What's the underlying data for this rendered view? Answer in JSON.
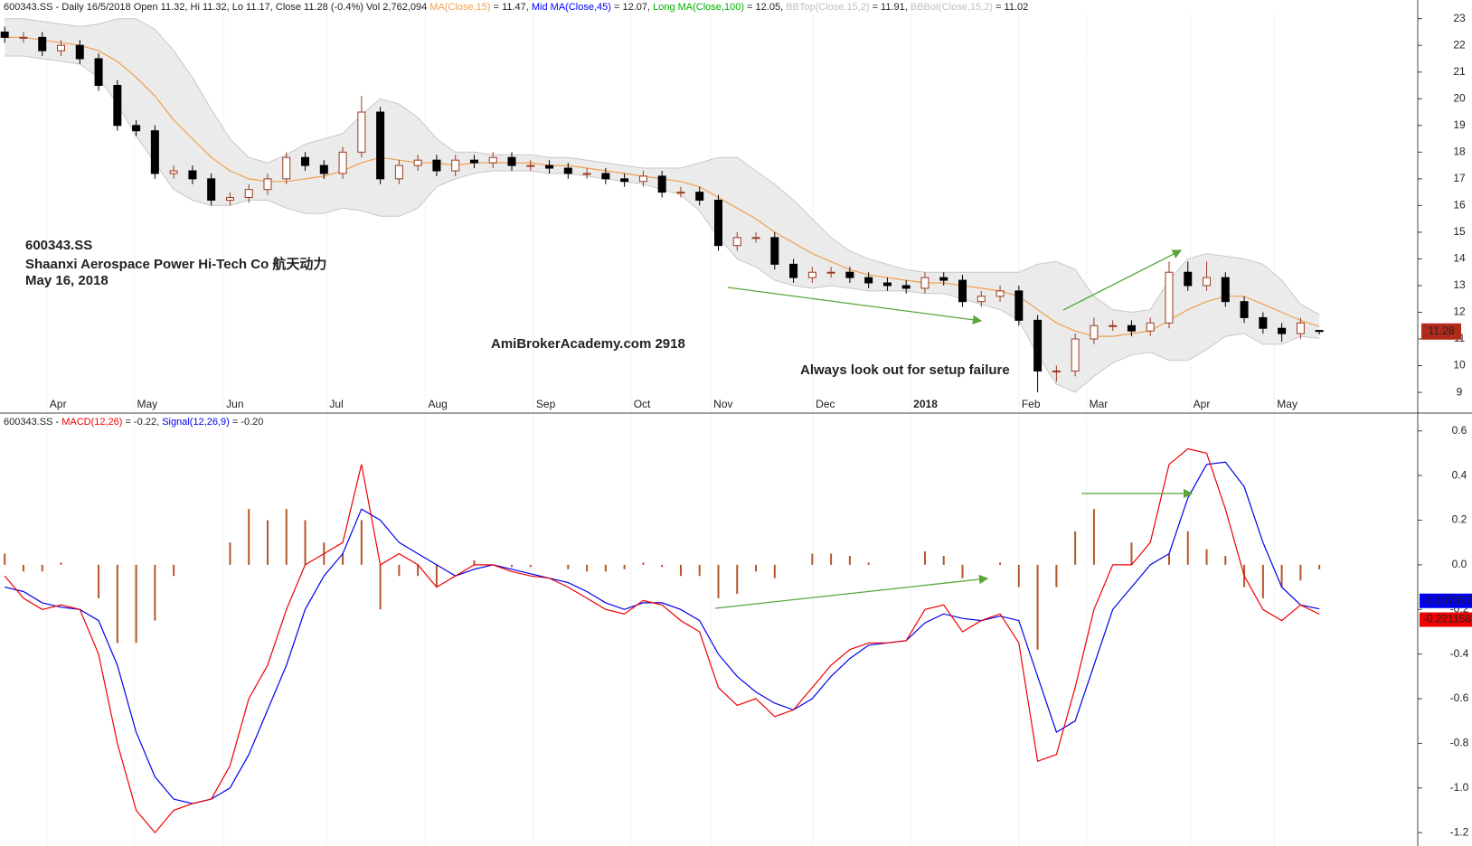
{
  "chart_data": [
    {
      "type": "candlestick",
      "header": [
        {
          "text": "600343.SS - Daily 16/5/2018 Open 11.32, Hi 11.32, Lo 11.17, Close 11.28 (-0.4%) Vol 2,762,094 ",
          "color": "#222222"
        },
        {
          "text": "MA(Close,15)",
          "color": "#f0a050"
        },
        {
          "text": " = 11.47, ",
          "color": "#222222"
        },
        {
          "text": "Mid MA(Close,45)",
          "color": "#0000ff"
        },
        {
          "text": " = 12.07, ",
          "color": "#222222"
        },
        {
          "text": "Long MA(Close,100)",
          "color": "#00b000"
        },
        {
          "text": " = 12.05, ",
          "color": "#222222"
        },
        {
          "text": "BBTop(Close,15,2)",
          "color": "#c0c0c0"
        },
        {
          "text": " = 11.91, ",
          "color": "#222222"
        },
        {
          "text": "BBBot(Close,15,2)",
          "color": "#c0c0c0"
        },
        {
          "text": " = 11.02",
          "color": "#222222"
        }
      ],
      "annotations": [
        {
          "text": "600343.SS",
          "color": "#e03a2a"
        },
        {
          "text": "Shaanxi Aerospace Power Hi-Tech Co  航天动力",
          "color": "#e03a2a"
        },
        {
          "text": "May 16, 2018",
          "color": "#e03a2a"
        },
        {
          "text": "AmiBrokerAcademy.com   2918",
          "color": "#e03a2a"
        },
        {
          "text": "Always look out for setup failure",
          "color": "#e03a2a"
        }
      ],
      "x": [
        0,
        1,
        2,
        3,
        4,
        5,
        6,
        7,
        8,
        9,
        10,
        11,
        12,
        13,
        14,
        15,
        16,
        17,
        18,
        19,
        20,
        21,
        22,
        23,
        24,
        25,
        26,
        27,
        28,
        29,
        30,
        31,
        32,
        33,
        34,
        35,
        36,
        37,
        38,
        39,
        40,
        41,
        42,
        43,
        44,
        45,
        46,
        47,
        48,
        49,
        50,
        51,
        52,
        53,
        54,
        55,
        56,
        57,
        58,
        59,
        60,
        61,
        62,
        63,
        64,
        65,
        66,
        67,
        68,
        69,
        70
      ],
      "open": [
        22.5,
        22.3,
        22.3,
        21.8,
        22.0,
        21.5,
        20.5,
        19.0,
        18.8,
        17.2,
        17.3,
        17.0,
        16.2,
        16.3,
        16.6,
        17.0,
        17.8,
        17.5,
        17.2,
        18.0,
        19.5,
        17.0,
        17.5,
        17.7,
        17.3,
        17.7,
        17.6,
        17.8,
        17.5,
        17.5,
        17.4,
        17.2,
        17.2,
        17.0,
        16.9,
        17.1,
        16.5,
        16.5,
        16.2,
        14.5,
        14.8,
        14.8,
        13.8,
        13.3,
        13.5,
        13.5,
        13.3,
        13.1,
        13.0,
        12.9,
        13.3,
        13.2,
        12.4,
        12.6,
        12.8,
        11.7,
        9.8,
        9.8,
        11.0,
        11.5,
        11.5,
        11.3,
        11.6,
        13.5,
        13.0,
        13.3,
        12.4,
        11.8,
        11.4,
        11.2,
        11.32
      ],
      "high": [
        22.7,
        22.5,
        22.5,
        22.2,
        22.2,
        21.7,
        20.7,
        19.2,
        19.0,
        17.5,
        17.5,
        17.2,
        16.5,
        16.8,
        17.2,
        18.0,
        18.0,
        17.7,
        18.2,
        20.1,
        19.7,
        17.7,
        17.9,
        17.9,
        17.9,
        17.9,
        18.0,
        18.0,
        17.7,
        17.7,
        17.6,
        17.4,
        17.4,
        17.2,
        17.3,
        17.3,
        16.7,
        16.7,
        16.4,
        15.0,
        15.0,
        15.0,
        14.0,
        13.7,
        13.7,
        13.7,
        13.5,
        13.3,
        13.2,
        13.5,
        13.5,
        13.4,
        12.8,
        13.0,
        13.0,
        11.9,
        10.0,
        11.2,
        11.8,
        11.7,
        11.7,
        11.8,
        13.9,
        13.9,
        13.9,
        13.5,
        12.6,
        12.0,
        11.6,
        11.8,
        11.32
      ],
      "low": [
        22.1,
        22.1,
        21.6,
        21.6,
        21.3,
        20.3,
        18.8,
        18.6,
        17.0,
        17.0,
        16.8,
        16.0,
        16.0,
        16.1,
        16.4,
        16.8,
        17.3,
        17.0,
        17.0,
        17.8,
        16.8,
        16.8,
        17.3,
        17.1,
        17.1,
        17.4,
        17.4,
        17.3,
        17.3,
        17.2,
        17.0,
        17.0,
        16.8,
        16.7,
        16.7,
        16.3,
        16.3,
        16.0,
        14.3,
        14.3,
        14.6,
        13.6,
        13.1,
        13.1,
        13.3,
        13.1,
        12.9,
        12.8,
        12.7,
        12.7,
        13.0,
        12.2,
        12.2,
        12.4,
        11.5,
        9.0,
        9.4,
        9.6,
        10.8,
        11.3,
        11.1,
        11.1,
        11.4,
        12.8,
        12.8,
        12.2,
        11.6,
        11.2,
        10.9,
        11.0,
        11.17
      ],
      "close": [
        22.3,
        22.3,
        21.8,
        22.0,
        21.5,
        20.5,
        19.0,
        18.8,
        17.2,
        17.3,
        17.0,
        16.2,
        16.3,
        16.6,
        17.0,
        17.8,
        17.5,
        17.2,
        18.0,
        19.5,
        17.0,
        17.5,
        17.7,
        17.3,
        17.7,
        17.6,
        17.8,
        17.5,
        17.5,
        17.4,
        17.2,
        17.2,
        17.0,
        16.9,
        17.1,
        16.5,
        16.5,
        16.2,
        14.5,
        14.8,
        14.8,
        13.8,
        13.3,
        13.5,
        13.5,
        13.3,
        13.1,
        13.0,
        12.9,
        13.3,
        13.2,
        12.4,
        12.6,
        12.8,
        11.7,
        9.8,
        9.8,
        11.0,
        11.5,
        11.5,
        11.3,
        11.6,
        13.5,
        13.0,
        13.3,
        12.4,
        11.8,
        11.4,
        11.2,
        11.6,
        11.28
      ],
      "ma": [
        22.3,
        22.3,
        22.2,
        22.1,
        22.0,
        21.8,
        21.4,
        20.8,
        20.1,
        19.2,
        18.5,
        17.8,
        17.3,
        17.0,
        16.9,
        16.9,
        17.0,
        17.1,
        17.3,
        17.6,
        17.8,
        17.7,
        17.6,
        17.6,
        17.5,
        17.6,
        17.6,
        17.6,
        17.6,
        17.5,
        17.5,
        17.4,
        17.3,
        17.2,
        17.1,
        17.0,
        16.9,
        16.7,
        16.3,
        15.9,
        15.5,
        15.0,
        14.6,
        14.2,
        13.9,
        13.6,
        13.4,
        13.3,
        13.2,
        13.1,
        13.1,
        13.0,
        12.9,
        12.8,
        12.6,
        12.1,
        11.6,
        11.3,
        11.1,
        11.1,
        11.2,
        11.3,
        11.7,
        12.1,
        12.4,
        12.6,
        12.6,
        12.3,
        12.0,
        11.7,
        11.47
      ],
      "bb_top": [
        23.0,
        23.0,
        22.9,
        22.8,
        22.7,
        22.8,
        23.0,
        23.0,
        22.6,
        21.8,
        20.8,
        19.6,
        18.5,
        17.8,
        17.6,
        17.9,
        18.3,
        18.5,
        18.7,
        19.4,
        20.0,
        19.8,
        19.3,
        18.5,
        18.0,
        18.0,
        17.9,
        17.9,
        17.9,
        17.8,
        17.8,
        17.7,
        17.6,
        17.5,
        17.4,
        17.4,
        17.4,
        17.6,
        17.8,
        17.8,
        17.3,
        16.8,
        16.2,
        15.5,
        14.8,
        14.3,
        14.0,
        13.8,
        13.6,
        13.5,
        13.5,
        13.5,
        13.5,
        13.5,
        13.5,
        13.8,
        13.9,
        13.6,
        12.6,
        12.1,
        12.0,
        12.1,
        13.2,
        14.0,
        14.2,
        14.1,
        14.0,
        13.8,
        13.2,
        12.3,
        11.91
      ],
      "bb_bot": [
        21.6,
        21.6,
        21.5,
        21.4,
        21.3,
        20.8,
        19.8,
        18.6,
        17.6,
        16.6,
        16.2,
        16.0,
        16.0,
        16.2,
        16.2,
        15.9,
        15.7,
        15.7,
        15.9,
        15.8,
        15.6,
        15.6,
        15.9,
        16.7,
        17.0,
        17.2,
        17.3,
        17.3,
        17.3,
        17.2,
        17.2,
        17.1,
        17.0,
        16.9,
        16.8,
        16.6,
        16.4,
        15.8,
        14.8,
        14.0,
        13.7,
        13.2,
        13.0,
        12.9,
        13.0,
        12.9,
        12.8,
        12.8,
        12.8,
        12.7,
        12.7,
        12.5,
        12.3,
        12.1,
        11.7,
        10.4,
        9.3,
        9.0,
        9.6,
        10.1,
        10.4,
        10.5,
        10.2,
        10.2,
        10.6,
        11.1,
        11.2,
        10.8,
        10.8,
        11.1,
        11.02
      ],
      "colors": {
        "up": "#ffffff",
        "down": "#000000",
        "outline": "#9a3b1e",
        "ma": "#f0a050",
        "band": "#ebebeb",
        "band_line": "#c8c8c8",
        "last": "#b22a1c"
      },
      "xlim": [
        -0.25,
        75.24
      ],
      "xticks": [
        {
          "value": 2.25,
          "label": "Apr"
        },
        {
          "value": 6.9,
          "label": "May"
        },
        {
          "value": 11.65,
          "label": "Jun"
        },
        {
          "value": 17.15,
          "label": "Jul"
        },
        {
          "value": 22.4,
          "label": "Aug"
        },
        {
          "value": 28.15,
          "label": "Sep"
        },
        {
          "value": 33.34,
          "label": "Oct"
        },
        {
          "value": 37.6,
          "label": "Nov"
        },
        {
          "value": 43.04,
          "label": "Dec"
        },
        {
          "value": 48.24,
          "label": "2018"
        },
        {
          "value": 54.0,
          "label": "Feb"
        },
        {
          "value": 57.6,
          "label": "Mar"
        },
        {
          "value": 63.14,
          "label": "Apr"
        },
        {
          "value": 67.6,
          "label": "May"
        }
      ],
      "ylim": [
        8.8,
        23.7
      ],
      "yticks": [
        9,
        10,
        11,
        12,
        13,
        14,
        15,
        16,
        17,
        18,
        19,
        20,
        21,
        22,
        23
      ],
      "grid": true
    },
    {
      "type": "macd",
      "header": [
        {
          "text": "600343.SS - ",
          "color": "#222222"
        },
        {
          "text": "MACD(12,26)",
          "color": "#ee0000"
        },
        {
          "text": " = -0.22, ",
          "color": "#222222"
        },
        {
          "text": "Signal(12,26,9)",
          "color": "#0000ee"
        },
        {
          "text": " = -0.20",
          "color": "#222222"
        }
      ],
      "x": [
        0,
        1,
        2,
        3,
        4,
        5,
        6,
        7,
        8,
        9,
        10,
        11,
        12,
        13,
        14,
        15,
        16,
        17,
        18,
        19,
        20,
        21,
        22,
        23,
        24,
        25,
        26,
        27,
        28,
        29,
        30,
        31,
        32,
        33,
        34,
        35,
        36,
        37,
        38,
        39,
        40,
        41,
        42,
        43,
        44,
        45,
        46,
        47,
        48,
        49,
        50,
        51,
        52,
        53,
        54,
        55,
        56,
        57,
        58,
        59,
        60,
        61,
        62,
        63,
        64,
        65,
        66,
        67,
        68,
        69,
        70
      ],
      "series": [
        {
          "name": "MACD(12,26)",
          "color": "#ee0000",
          "values": [
            -0.05,
            -0.15,
            -0.2,
            -0.18,
            -0.2,
            -0.4,
            -0.8,
            -1.1,
            -1.2,
            -1.1,
            -1.07,
            -1.05,
            -0.9,
            -0.6,
            -0.45,
            -0.2,
            0.0,
            0.05,
            0.1,
            0.45,
            0.0,
            0.05,
            0.0,
            -0.1,
            -0.05,
            0.0,
            0.0,
            -0.03,
            -0.05,
            -0.06,
            -0.1,
            -0.15,
            -0.2,
            -0.22,
            -0.16,
            -0.18,
            -0.25,
            -0.3,
            -0.55,
            -0.63,
            -0.6,
            -0.68,
            -0.65,
            -0.55,
            -0.45,
            -0.38,
            -0.35,
            -0.35,
            -0.34,
            -0.2,
            -0.18,
            -0.3,
            -0.25,
            -0.22,
            -0.35,
            -0.88,
            -0.85,
            -0.55,
            -0.2,
            0.0,
            0.0,
            0.1,
            0.45,
            0.52,
            0.5,
            0.25,
            -0.05,
            -0.2,
            -0.25,
            -0.18,
            -0.221158
          ]
        },
        {
          "name": "Signal(12,26,9)",
          "color": "#0000ee",
          "values": [
            -0.1,
            -0.12,
            -0.17,
            -0.19,
            -0.2,
            -0.25,
            -0.45,
            -0.75,
            -0.95,
            -1.05,
            -1.07,
            -1.05,
            -1.0,
            -0.85,
            -0.65,
            -0.45,
            -0.2,
            -0.05,
            0.05,
            0.25,
            0.2,
            0.1,
            0.05,
            0.0,
            -0.05,
            -0.02,
            0.0,
            -0.02,
            -0.04,
            -0.06,
            -0.08,
            -0.12,
            -0.17,
            -0.2,
            -0.17,
            -0.17,
            -0.2,
            -0.25,
            -0.4,
            -0.5,
            -0.57,
            -0.62,
            -0.65,
            -0.6,
            -0.5,
            -0.42,
            -0.36,
            -0.35,
            -0.34,
            -0.26,
            -0.22,
            -0.24,
            -0.25,
            -0.23,
            -0.25,
            -0.5,
            -0.75,
            -0.7,
            -0.45,
            -0.2,
            -0.1,
            0.0,
            0.05,
            0.3,
            0.45,
            0.46,
            0.35,
            0.1,
            -0.1,
            -0.18,
            -0.197857
          ]
        }
      ],
      "histogram": {
        "color": "#b5542c",
        "values": [
          0.05,
          -0.03,
          -0.03,
          0.01,
          0,
          -0.15,
          -0.35,
          -0.35,
          -0.25,
          -0.05,
          0,
          0,
          0.1,
          0.25,
          0.2,
          0.25,
          0.2,
          0.1,
          0.05,
          0.2,
          -0.2,
          -0.05,
          -0.05,
          -0.1,
          0,
          0.02,
          0,
          -0.01,
          -0.01,
          0,
          -0.02,
          -0.03,
          -0.03,
          -0.02,
          0.01,
          -0.01,
          -0.05,
          -0.05,
          -0.15,
          -0.13,
          -0.03,
          -0.06,
          0,
          0.05,
          0.05,
          0.04,
          0.01,
          0,
          0,
          0.06,
          0.04,
          -0.06,
          0,
          0.01,
          -0.1,
          -0.38,
          -0.1,
          0.15,
          0.25,
          0,
          0.1,
          0,
          0.05,
          0.15,
          0.07,
          0.04,
          -0.1,
          -0.15,
          -0.1,
          -0.07,
          -0.02
        ]
      },
      "xlim": [
        -0.25,
        75.24
      ],
      "ylim": [
        -1.26,
        0.68
      ],
      "yticks": [
        0.6,
        0.4,
        0.2,
        {
          "value": 0,
          "label": "0.0"
        },
        -0.2,
        -0.4,
        -0.6,
        -0.8,
        {
          "value": -1,
          "label": "-1.0"
        },
        -1.2
      ],
      "grid": true
    }
  ]
}
